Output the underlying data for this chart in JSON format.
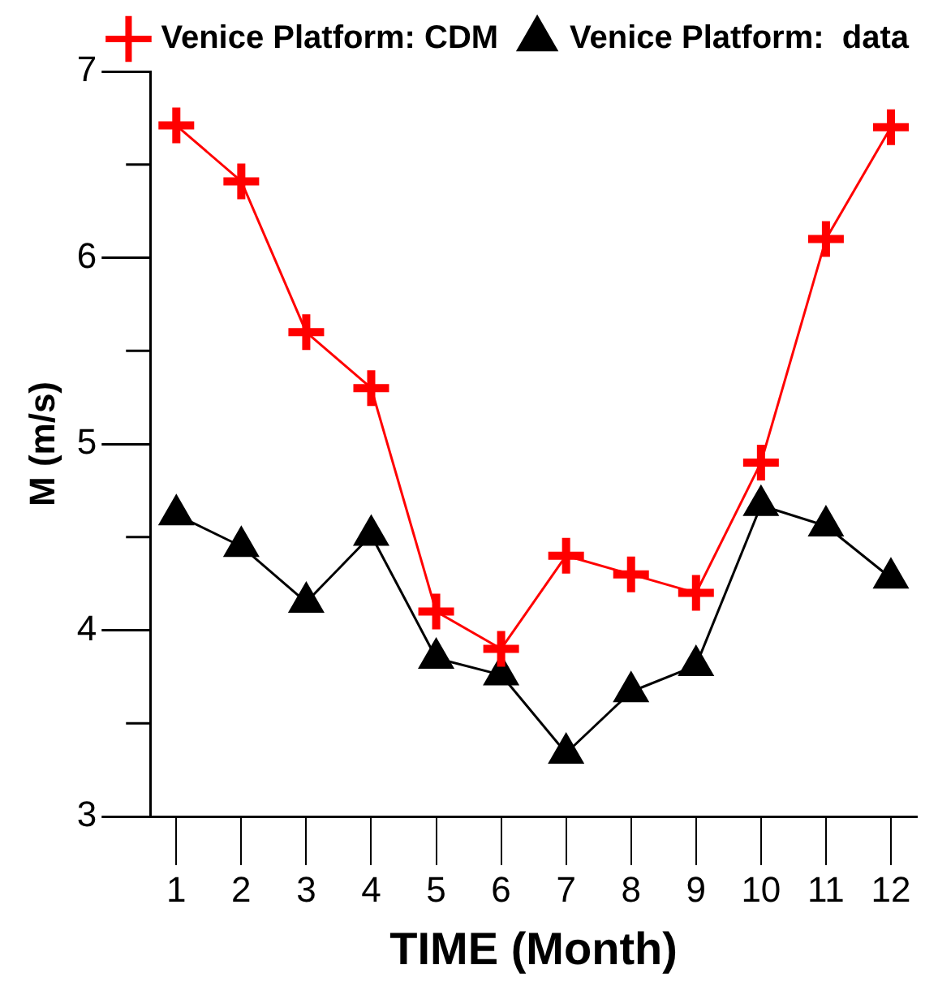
{
  "chart_data": {
    "type": "line",
    "xlabel": "TIME (Month)",
    "ylabel": "M (m/s)",
    "x": [
      1,
      2,
      3,
      4,
      5,
      6,
      7,
      8,
      9,
      10,
      11,
      12
    ],
    "xlim": [
      0.6,
      12.4
    ],
    "xticks": [
      1,
      2,
      3,
      4,
      5,
      6,
      7,
      8,
      9,
      10,
      11,
      12
    ],
    "ylim": [
      3,
      7
    ],
    "yticks": [
      3,
      {
        "value": 3.5,
        "label": null
      },
      4,
      {
        "value": 4.5,
        "label": null
      },
      5,
      {
        "value": 5.5,
        "label": null
      },
      6,
      {
        "value": 6.5,
        "label": null
      },
      7
    ],
    "grid": false,
    "legend": "top right",
    "series": [
      {
        "name": "Venice Platform: CDM",
        "color": "#ff0000",
        "marker": "cross",
        "values": [
          6.71,
          6.41,
          5.6,
          5.3,
          4.1,
          3.9,
          4.4,
          4.3,
          4.2,
          4.9,
          6.1,
          6.7
        ]
      },
      {
        "name": "Venice Platform:  data",
        "color": "#000000",
        "marker": "triangle",
        "values": [
          4.62,
          4.45,
          4.15,
          4.51,
          3.85,
          3.76,
          3.34,
          3.67,
          3.81,
          4.67,
          4.56,
          4.28
        ]
      }
    ]
  }
}
